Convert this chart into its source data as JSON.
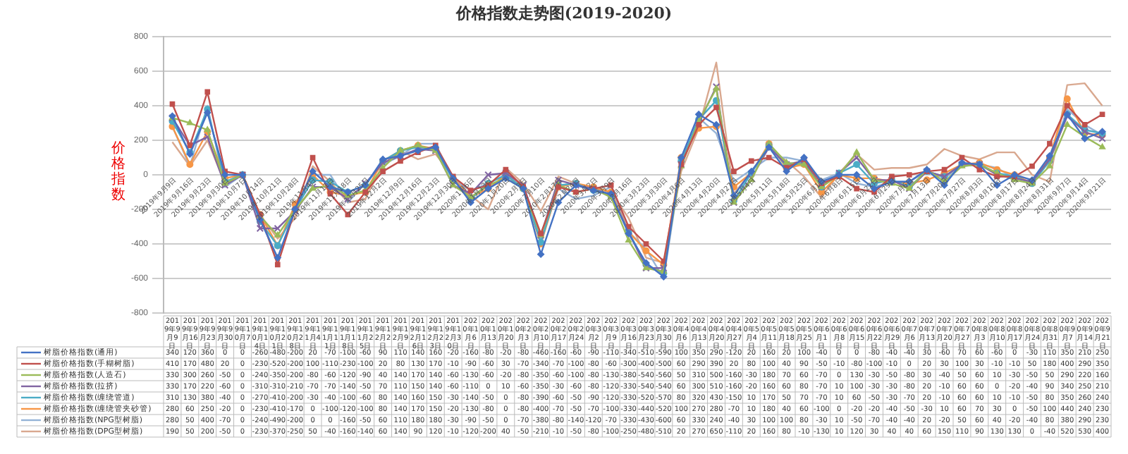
{
  "chart_data": {
    "type": "line",
    "title": "价格指数走势图(2019-2020)",
    "ylabel": "价格指数",
    "categories": [
      "2019年9月9日",
      "2019年9月16日",
      "2019年9月23日",
      "2019年9月30日",
      "2019年10月7日",
      "2019年10月14日",
      "2019年10月21日",
      "2019年10月28日",
      "2019年11月4日",
      "2019年11月11日",
      "2019年11月18日",
      "2019年11月25日",
      "2019年12月2日",
      "2019年12月9日",
      "2019年12月16日",
      "2019年12月23日",
      "2019年12月30日",
      "2020年1月6日",
      "2020年1月13日",
      "2020年1月20日",
      "2020年2月3日",
      "2020年2月10日",
      "2020年2月17日",
      "2020年2月24日",
      "2020年3月2日",
      "2020年3月9日",
      "2020年3月16日",
      "2020年3月23日",
      "2020年3月30日",
      "2020年4月6日",
      "2020年4月13日",
      "2020年4月20日",
      "2020年4月27日",
      "2020年5月4日",
      "2020年5月11日",
      "2020年5月18日",
      "2020年5月25日",
      "2020年6月1日",
      "2020年6月8日",
      "2020年6月15日",
      "2020年6月22日",
      "2020年6月29日",
      "2020年7月6日",
      "2020年7月13日",
      "2020年7月20日",
      "2020年7月27日",
      "2020年8月3日",
      "2020年8月10日",
      "2020年8月17日",
      "2020年8月24日",
      "2020年8月31日",
      "2020年9月7日",
      "2020年9月14日",
      "2020年9月21日"
    ],
    "series": [
      {
        "name": "树脂价格指数(通用)",
        "color": "#4472c4",
        "marker": "diamond",
        "values": [
          340,
          120,
          360,
          0,
          0,
          -260,
          -480,
          -200,
          20,
          -70,
          -100,
          -60,
          90,
          110,
          140,
          160,
          -20,
          -160,
          -80,
          -20,
          -80,
          -460,
          -160,
          -60,
          -90,
          -110,
          -340,
          -510,
          -590,
          100,
          350,
          290,
          -120,
          20,
          160,
          20,
          100,
          -40,
          0,
          0,
          -80,
          -40,
          -40,
          30,
          -60,
          70,
          60,
          -60,
          0,
          -30,
          110,
          350,
          210,
          250
        ]
      },
      {
        "name": "树脂价格指数(手糊树脂)",
        "color": "#c0504d",
        "marker": "square",
        "values": [
          410,
          170,
          480,
          20,
          0,
          -230,
          -520,
          -200,
          100,
          -110,
          -230,
          -100,
          20,
          80,
          130,
          170,
          -10,
          -90,
          -60,
          30,
          -70,
          -340,
          -70,
          -100,
          -80,
          -60,
          -300,
          -400,
          -500,
          60,
          290,
          390,
          20,
          80,
          100,
          40,
          90,
          -50,
          -10,
          -80,
          -100,
          -10,
          0,
          20,
          30,
          100,
          30,
          -10,
          -10,
          50,
          180,
          400,
          290,
          350
        ]
      },
      {
        "name": "树脂价格指数(人造石)",
        "color": "#9bbb59",
        "marker": "triangle",
        "values": [
          330,
          300,
          260,
          -50,
          0,
          -240,
          -350,
          -200,
          -80,
          -60,
          -120,
          -90,
          40,
          140,
          170,
          140,
          -60,
          -130,
          -60,
          -20,
          -80,
          -350,
          -60,
          -100,
          -80,
          -130,
          -380,
          -540,
          -560,
          50,
          310,
          500,
          -160,
          -30,
          180,
          70,
          60,
          -70,
          0,
          130,
          -30,
          -50,
          -80,
          30,
          -40,
          50,
          60,
          10,
          -30,
          -50,
          50,
          290,
          220,
          160
        ]
      },
      {
        "name": "树脂价格指数(拉挤)",
        "color": "#8064a2",
        "marker": "cross",
        "values": [
          330,
          170,
          220,
          -60,
          0,
          -310,
          -310,
          -210,
          -70,
          -70,
          -140,
          -50,
          70,
          110,
          150,
          140,
          -60,
          -110,
          0,
          10,
          -60,
          -350,
          -30,
          -60,
          -80,
          -120,
          -330,
          -540,
          -540,
          60,
          300,
          510,
          -160,
          -20,
          160,
          60,
          80,
          -70,
          10,
          100,
          -30,
          -30,
          -80,
          20,
          -10,
          60,
          60,
          0,
          -20,
          -40,
          90,
          340,
          250,
          210
        ]
      },
      {
        "name": "树脂价格指数(缠绕管道)",
        "color": "#4bacc6",
        "marker": "circle",
        "values": [
          310,
          130,
          380,
          -40,
          0,
          -270,
          -410,
          -200,
          -30,
          -40,
          -100,
          -60,
          80,
          140,
          160,
          150,
          -30,
          -140,
          -50,
          0,
          -80,
          -390,
          -60,
          -50,
          -90,
          -120,
          -330,
          -520,
          -570,
          80,
          320,
          430,
          -150,
          10,
          170,
          50,
          70,
          -70,
          10,
          60,
          -50,
          -30,
          -70,
          20,
          -10,
          60,
          60,
          10,
          -10,
          -50,
          80,
          350,
          260,
          240
        ]
      },
      {
        "name": "树脂价格指数(缠绕管夹砂管)",
        "color": "#f79646",
        "marker": "circle",
        "values": [
          280,
          60,
          250,
          -20,
          0,
          -230,
          -410,
          -170,
          0,
          -100,
          -120,
          -100,
          80,
          140,
          170,
          150,
          -20,
          -130,
          -80,
          0,
          -80,
          -400,
          -70,
          -50,
          -70,
          -100,
          -330,
          -440,
          -520,
          100,
          270,
          280,
          -70,
          10,
          180,
          40,
          60,
          -100,
          0,
          -20,
          -20,
          -40,
          -50,
          -30,
          10,
          60,
          70,
          30,
          0,
          -50,
          100,
          440,
          240,
          230
        ]
      },
      {
        "name": "树脂价格指数(NPG型树脂)",
        "color": "#95b3d7",
        "marker": "none",
        "values": [
          280,
          50,
          400,
          -70,
          0,
          -240,
          -490,
          -200,
          0,
          0,
          -160,
          -50,
          60,
          110,
          180,
          180,
          -30,
          -90,
          -50,
          0,
          -70,
          -380,
          -80,
          -140,
          -120,
          -70,
          -330,
          -430,
          -600,
          60,
          330,
          240,
          -40,
          30,
          100,
          100,
          80,
          -30,
          10,
          -50,
          -70,
          -40,
          -40,
          20,
          -20,
          50,
          60,
          40,
          -20,
          -40,
          80,
          380,
          290,
          230
        ]
      },
      {
        "name": "树脂价格指数(DPG型树脂)",
        "color": "#d9a88f",
        "marker": "none",
        "values": [
          190,
          50,
          200,
          -50,
          0,
          -230,
          -370,
          -250,
          50,
          -40,
          -160,
          -140,
          60,
          140,
          90,
          120,
          -10,
          -120,
          -200,
          40,
          -50,
          -210,
          -10,
          -50,
          -80,
          -100,
          -250,
          -480,
          -510,
          20,
          270,
          650,
          -110,
          20,
          160,
          80,
          -10,
          -130,
          10,
          120,
          30,
          40,
          40,
          60,
          150,
          110,
          90,
          130,
          130,
          0,
          -40,
          520,
          530,
          400
        ]
      }
    ],
    "ylim": [
      -800,
      800
    ],
    "yticks": [
      -800,
      -600,
      -400,
      -200,
      0,
      200,
      400,
      600,
      800
    ],
    "grid": "y",
    "legend": "bottom",
    "data_labels": true
  }
}
